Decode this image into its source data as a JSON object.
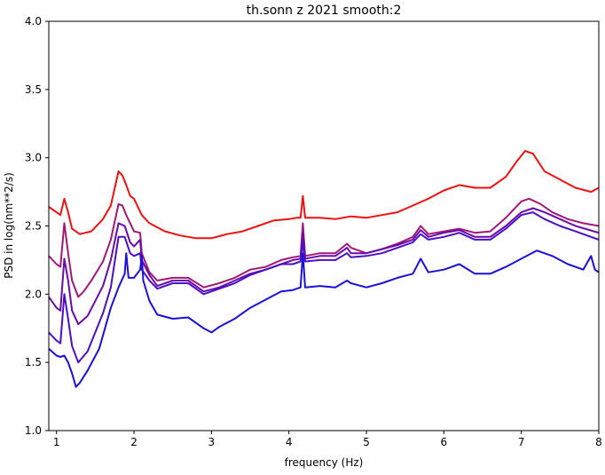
{
  "chart_data": {
    "type": "line",
    "title": "th.sonn z 2021 smooth:2",
    "xlabel": "frequency (Hz)",
    "ylabel": "PSD in log(nm**2/s)",
    "xlim": [
      0.9,
      8.0
    ],
    "ylim": [
      1.0,
      4.0
    ],
    "x_ticks": [
      1,
      2,
      3,
      4,
      5,
      6,
      7,
      8
    ],
    "x_tick_labels": [
      "1",
      "2",
      "3",
      "4",
      "5",
      "6",
      "7",
      "8"
    ],
    "y_ticks": [
      1.0,
      1.5,
      2.0,
      2.5,
      3.0,
      3.5,
      4.0
    ],
    "y_tick_labels": [
      "1.0",
      "1.5",
      "2.0",
      "2.5",
      "3.0",
      "3.5",
      "4.0"
    ],
    "grid": false,
    "legend": "none",
    "series": [
      {
        "color": "#ee1111",
        "points": [
          [
            0.9,
            2.64
          ],
          [
            1.0,
            2.6
          ],
          [
            1.05,
            2.58
          ],
          [
            1.1,
            2.7
          ],
          [
            1.15,
            2.6
          ],
          [
            1.2,
            2.48
          ],
          [
            1.3,
            2.44
          ],
          [
            1.45,
            2.46
          ],
          [
            1.6,
            2.55
          ],
          [
            1.7,
            2.65
          ],
          [
            1.8,
            2.9
          ],
          [
            1.85,
            2.87
          ],
          [
            1.9,
            2.8
          ],
          [
            1.95,
            2.72
          ],
          [
            2.0,
            2.7
          ],
          [
            2.1,
            2.58
          ],
          [
            2.2,
            2.52
          ],
          [
            2.4,
            2.46
          ],
          [
            2.6,
            2.43
          ],
          [
            2.8,
            2.41
          ],
          [
            3.0,
            2.41
          ],
          [
            3.2,
            2.44
          ],
          [
            3.4,
            2.46
          ],
          [
            3.6,
            2.5
          ],
          [
            3.8,
            2.54
          ],
          [
            4.0,
            2.55
          ],
          [
            4.1,
            2.56
          ],
          [
            4.15,
            2.56
          ],
          [
            4.18,
            2.72
          ],
          [
            4.21,
            2.56
          ],
          [
            4.4,
            2.56
          ],
          [
            4.6,
            2.55
          ],
          [
            4.8,
            2.57
          ],
          [
            5.0,
            2.56
          ],
          [
            5.2,
            2.58
          ],
          [
            5.4,
            2.6
          ],
          [
            5.6,
            2.65
          ],
          [
            5.8,
            2.7
          ],
          [
            6.0,
            2.76
          ],
          [
            6.2,
            2.8
          ],
          [
            6.4,
            2.78
          ],
          [
            6.6,
            2.78
          ],
          [
            6.8,
            2.86
          ],
          [
            6.95,
            2.98
          ],
          [
            7.05,
            3.05
          ],
          [
            7.15,
            3.03
          ],
          [
            7.3,
            2.9
          ],
          [
            7.5,
            2.84
          ],
          [
            7.7,
            2.78
          ],
          [
            7.9,
            2.75
          ],
          [
            8.0,
            2.78
          ]
        ]
      },
      {
        "color": "#a01878",
        "points": [
          [
            0.9,
            2.28
          ],
          [
            1.0,
            2.22
          ],
          [
            1.05,
            2.2
          ],
          [
            1.1,
            2.52
          ],
          [
            1.15,
            2.3
          ],
          [
            1.2,
            2.1
          ],
          [
            1.28,
            1.98
          ],
          [
            1.35,
            2.02
          ],
          [
            1.45,
            2.1
          ],
          [
            1.6,
            2.24
          ],
          [
            1.7,
            2.4
          ],
          [
            1.8,
            2.66
          ],
          [
            1.85,
            2.65
          ],
          [
            1.9,
            2.58
          ],
          [
            1.95,
            2.52
          ],
          [
            2.0,
            2.46
          ],
          [
            2.08,
            2.45
          ],
          [
            2.1,
            2.3
          ],
          [
            2.2,
            2.16
          ],
          [
            2.3,
            2.1
          ],
          [
            2.5,
            2.12
          ],
          [
            2.7,
            2.12
          ],
          [
            2.9,
            2.05
          ],
          [
            3.1,
            2.08
          ],
          [
            3.3,
            2.12
          ],
          [
            3.5,
            2.18
          ],
          [
            3.7,
            2.2
          ],
          [
            3.9,
            2.25
          ],
          [
            4.05,
            2.27
          ],
          [
            4.15,
            2.28
          ],
          [
            4.18,
            2.52
          ],
          [
            4.21,
            2.28
          ],
          [
            4.4,
            2.3
          ],
          [
            4.6,
            2.3
          ],
          [
            4.75,
            2.37
          ],
          [
            4.8,
            2.34
          ],
          [
            5.0,
            2.3
          ],
          [
            5.2,
            2.33
          ],
          [
            5.4,
            2.37
          ],
          [
            5.6,
            2.42
          ],
          [
            5.7,
            2.5
          ],
          [
            5.8,
            2.44
          ],
          [
            6.0,
            2.46
          ],
          [
            6.2,
            2.48
          ],
          [
            6.4,
            2.45
          ],
          [
            6.6,
            2.46
          ],
          [
            6.8,
            2.56
          ],
          [
            7.0,
            2.68
          ],
          [
            7.1,
            2.7
          ],
          [
            7.25,
            2.66
          ],
          [
            7.4,
            2.6
          ],
          [
            7.6,
            2.55
          ],
          [
            7.8,
            2.52
          ],
          [
            8.0,
            2.5
          ]
        ]
      },
      {
        "color": "#6a0aa8",
        "points": [
          [
            0.9,
            1.98
          ],
          [
            1.0,
            1.9
          ],
          [
            1.05,
            1.88
          ],
          [
            1.1,
            2.26
          ],
          [
            1.15,
            2.1
          ],
          [
            1.2,
            1.88
          ],
          [
            1.28,
            1.78
          ],
          [
            1.4,
            1.84
          ],
          [
            1.6,
            2.06
          ],
          [
            1.7,
            2.25
          ],
          [
            1.8,
            2.52
          ],
          [
            1.88,
            2.5
          ],
          [
            1.95,
            2.38
          ],
          [
            2.0,
            2.35
          ],
          [
            2.08,
            2.4
          ],
          [
            2.1,
            2.25
          ],
          [
            2.2,
            2.14
          ],
          [
            2.3,
            2.06
          ],
          [
            2.5,
            2.1
          ],
          [
            2.7,
            2.1
          ],
          [
            2.9,
            2.02
          ],
          [
            3.1,
            2.05
          ],
          [
            3.3,
            2.1
          ],
          [
            3.5,
            2.15
          ],
          [
            3.7,
            2.18
          ],
          [
            3.9,
            2.22
          ],
          [
            4.05,
            2.25
          ],
          [
            4.15,
            2.26
          ],
          [
            4.18,
            2.45
          ],
          [
            4.21,
            2.26
          ],
          [
            4.4,
            2.28
          ],
          [
            4.6,
            2.28
          ],
          [
            4.75,
            2.34
          ],
          [
            4.8,
            2.3
          ],
          [
            5.0,
            2.3
          ],
          [
            5.2,
            2.33
          ],
          [
            5.4,
            2.36
          ],
          [
            5.6,
            2.4
          ],
          [
            5.7,
            2.47
          ],
          [
            5.8,
            2.42
          ],
          [
            6.0,
            2.45
          ],
          [
            6.2,
            2.47
          ],
          [
            6.4,
            2.42
          ],
          [
            6.6,
            2.42
          ],
          [
            6.8,
            2.5
          ],
          [
            7.0,
            2.6
          ],
          [
            7.15,
            2.63
          ],
          [
            7.3,
            2.6
          ],
          [
            7.5,
            2.55
          ],
          [
            7.7,
            2.5
          ],
          [
            8.0,
            2.45
          ]
        ]
      },
      {
        "color": "#4a10c8",
        "points": [
          [
            0.9,
            1.72
          ],
          [
            1.0,
            1.66
          ],
          [
            1.05,
            1.64
          ],
          [
            1.1,
            2.0
          ],
          [
            1.15,
            1.82
          ],
          [
            1.2,
            1.62
          ],
          [
            1.28,
            1.5
          ],
          [
            1.4,
            1.58
          ],
          [
            1.6,
            1.86
          ],
          [
            1.7,
            2.05
          ],
          [
            1.8,
            2.42
          ],
          [
            1.88,
            2.42
          ],
          [
            1.95,
            2.3
          ],
          [
            2.0,
            2.28
          ],
          [
            2.08,
            2.3
          ],
          [
            2.1,
            2.18
          ],
          [
            2.2,
            2.1
          ],
          [
            2.3,
            2.04
          ],
          [
            2.5,
            2.08
          ],
          [
            2.7,
            2.08
          ],
          [
            2.9,
            2.0
          ],
          [
            3.1,
            2.04
          ],
          [
            3.3,
            2.08
          ],
          [
            3.5,
            2.14
          ],
          [
            3.7,
            2.18
          ],
          [
            3.9,
            2.22
          ],
          [
            4.05,
            2.22
          ],
          [
            4.15,
            2.24
          ],
          [
            4.18,
            2.38
          ],
          [
            4.21,
            2.24
          ],
          [
            4.4,
            2.25
          ],
          [
            4.6,
            2.25
          ],
          [
            4.75,
            2.3
          ],
          [
            4.8,
            2.27
          ],
          [
            5.0,
            2.28
          ],
          [
            5.2,
            2.3
          ],
          [
            5.4,
            2.34
          ],
          [
            5.6,
            2.38
          ],
          [
            5.7,
            2.44
          ],
          [
            5.8,
            2.4
          ],
          [
            6.0,
            2.42
          ],
          [
            6.2,
            2.45
          ],
          [
            6.4,
            2.4
          ],
          [
            6.6,
            2.4
          ],
          [
            6.8,
            2.48
          ],
          [
            7.0,
            2.58
          ],
          [
            7.15,
            2.6
          ],
          [
            7.3,
            2.55
          ],
          [
            7.5,
            2.5
          ],
          [
            7.7,
            2.46
          ],
          [
            8.0,
            2.4
          ]
        ]
      },
      {
        "color": "#1a10d8",
        "points": [
          [
            0.9,
            1.6
          ],
          [
            1.0,
            1.55
          ],
          [
            1.05,
            1.54
          ],
          [
            1.1,
            1.55
          ],
          [
            1.15,
            1.5
          ],
          [
            1.2,
            1.42
          ],
          [
            1.25,
            1.32
          ],
          [
            1.3,
            1.35
          ],
          [
            1.4,
            1.44
          ],
          [
            1.55,
            1.6
          ],
          [
            1.7,
            1.9
          ],
          [
            1.8,
            2.05
          ],
          [
            1.88,
            2.15
          ],
          [
            1.9,
            2.3
          ],
          [
            1.93,
            2.12
          ],
          [
            2.0,
            2.12
          ],
          [
            2.08,
            2.18
          ],
          [
            2.1,
            2.28
          ],
          [
            2.12,
            2.1
          ],
          [
            2.2,
            1.95
          ],
          [
            2.3,
            1.85
          ],
          [
            2.5,
            1.82
          ],
          [
            2.7,
            1.83
          ],
          [
            2.9,
            1.75
          ],
          [
            3.0,
            1.72
          ],
          [
            3.1,
            1.76
          ],
          [
            3.3,
            1.82
          ],
          [
            3.5,
            1.9
          ],
          [
            3.7,
            1.96
          ],
          [
            3.9,
            2.02
          ],
          [
            4.05,
            2.03
          ],
          [
            4.15,
            2.05
          ],
          [
            4.18,
            2.3
          ],
          [
            4.21,
            2.05
          ],
          [
            4.4,
            2.06
          ],
          [
            4.6,
            2.05
          ],
          [
            4.75,
            2.1
          ],
          [
            4.8,
            2.08
          ],
          [
            5.0,
            2.05
          ],
          [
            5.2,
            2.08
          ],
          [
            5.4,
            2.12
          ],
          [
            5.6,
            2.15
          ],
          [
            5.7,
            2.26
          ],
          [
            5.8,
            2.16
          ],
          [
            6.0,
            2.18
          ],
          [
            6.2,
            2.22
          ],
          [
            6.4,
            2.15
          ],
          [
            6.6,
            2.15
          ],
          [
            6.8,
            2.2
          ],
          [
            7.0,
            2.26
          ],
          [
            7.2,
            2.32
          ],
          [
            7.4,
            2.28
          ],
          [
            7.6,
            2.22
          ],
          [
            7.8,
            2.18
          ],
          [
            7.9,
            2.28
          ],
          [
            7.95,
            2.18
          ],
          [
            8.0,
            2.16
          ]
        ]
      }
    ]
  }
}
